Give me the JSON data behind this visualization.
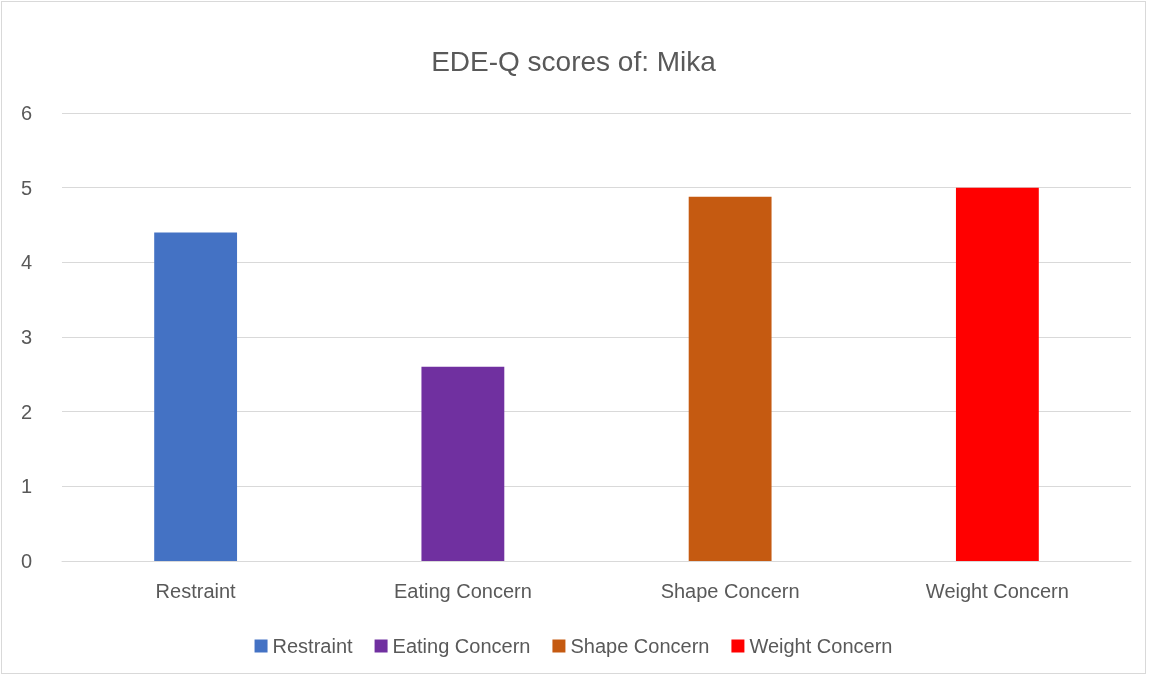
{
  "chart_data": {
    "type": "bar",
    "title": "EDE-Q scores of: Mika",
    "categories": [
      "Restraint",
      "Eating Concern",
      "Shape Concern",
      "Weight Concern"
    ],
    "series": [
      {
        "name": "Restraint",
        "color": "#4472c4",
        "values": [
          4.4,
          null,
          null,
          null
        ]
      },
      {
        "name": "Eating Concern",
        "color": "#7030a0",
        "values": [
          null,
          2.6,
          null,
          null
        ]
      },
      {
        "name": "Shape Concern",
        "color": "#c55a11",
        "values": [
          null,
          null,
          4.88,
          null
        ]
      },
      {
        "name": "Weight Concern",
        "color": "#ff0000",
        "values": [
          null,
          null,
          null,
          5.0
        ]
      }
    ],
    "ylim": [
      0,
      6
    ],
    "yticks": [
      0,
      1,
      2,
      3,
      4,
      5,
      6
    ],
    "grid": "y",
    "legend": "bottom"
  }
}
